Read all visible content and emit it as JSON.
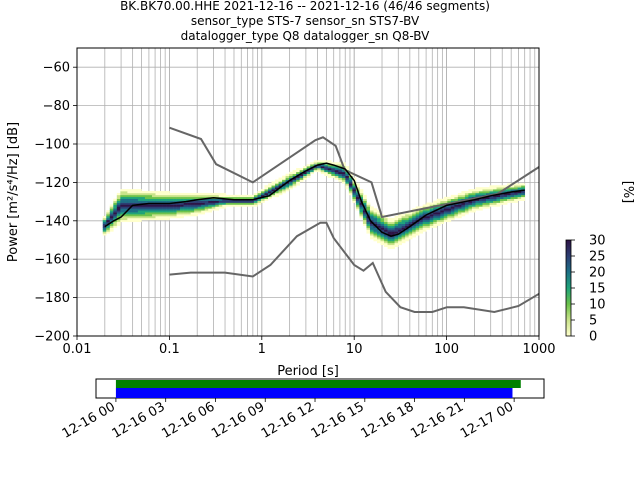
{
  "title": {
    "line1": "BK.BK70.00.HHE   2021-12-16 -- 2021-12-16  (46/46 segments)",
    "line2": "sensor_type STS-7 sensor_sn STS7-BV",
    "line3": "datalogger_type Q8 datalogger_sn Q8-BV"
  },
  "colorbar": {
    "label": "[%]",
    "ticks": [
      "0",
      "5",
      "10",
      "15",
      "20",
      "25",
      "30"
    ],
    "range": [
      0,
      30
    ],
    "colors": [
      "#ffffcc",
      "#c9e38a",
      "#6cc24a",
      "#1fa37a",
      "#1d6f86",
      "#2c3e73",
      "#2e1446"
    ]
  },
  "chart_data": [
    {
      "type": "heatmap",
      "title": "",
      "xlabel": "Period [s]",
      "ylabel": "Power [m²/s⁴/Hz] [dB]",
      "xscale": "log",
      "xlim": [
        0.01,
        1000
      ],
      "ylim": [
        -200,
        -50
      ],
      "grid": true,
      "x_ticks": [
        "0.01",
        "0.1",
        "1",
        "10",
        "100",
        "1000"
      ],
      "y_ticks": [
        "−200",
        "−180",
        "−160",
        "−140",
        "−120",
        "−100",
        "−80",
        "−60"
      ],
      "y_tick_values": [
        -200,
        -180,
        -160,
        -140,
        -120,
        -100,
        -80,
        -60
      ],
      "mean_psd": {
        "color": "#000000",
        "periods": [
          0.02,
          0.025,
          0.03,
          0.04,
          0.06,
          0.1,
          0.15,
          0.2,
          0.3,
          0.5,
          0.8,
          1.2,
          2,
          3,
          4,
          5,
          6,
          8,
          10,
          12,
          15,
          20,
          25,
          30,
          40,
          60,
          100,
          200,
          300,
          500,
          700
        ],
        "db": [
          -143,
          -140,
          -138,
          -132,
          -131,
          -131,
          -130,
          -129,
          -128,
          -129,
          -129,
          -127,
          -119,
          -114,
          -111,
          -110,
          -111,
          -113,
          -119,
          -130,
          -140,
          -146,
          -148,
          -147,
          -143,
          -137,
          -132,
          -129,
          -127,
          -125,
          -124
        ]
      },
      "noise_model_high": {
        "color": "#666666",
        "periods": [
          0.1,
          0.22,
          0.32,
          0.8,
          3.8,
          4.6,
          6.3,
          7.9,
          15.4,
          20,
          354.8,
          1000
        ],
        "db": [
          -91.5,
          -97.4,
          -110.5,
          -120,
          -98,
          -96.5,
          -101,
          -113.5,
          -120,
          -138,
          -126,
          -112
        ]
      },
      "noise_model_low": {
        "color": "#666666",
        "periods": [
          0.1,
          0.17,
          0.4,
          0.8,
          1.24,
          2.4,
          4.3,
          5,
          6,
          10,
          12.6,
          15.9,
          21.9,
          31.6,
          45,
          70,
          101,
          154,
          328,
          600,
          1000
        ],
        "db": [
          -168,
          -167,
          -167,
          -169,
          -163,
          -148,
          -141,
          -141,
          -149,
          -163,
          -166,
          -162,
          -177,
          -185,
          -187.5,
          -187.5,
          -185,
          -185,
          -187.5,
          -184.4,
          -178
        ]
      },
      "density_band": {
        "description_periods": [
          0.02,
          0.03,
          0.05,
          0.1,
          0.2,
          0.4,
          0.8,
          2,
          4,
          8,
          15,
          25,
          60,
          200,
          700
        ],
        "upper_db": [
          -138,
          -124,
          -125,
          -126,
          -126,
          -127,
          -127,
          -116,
          -109,
          -111,
          -133,
          -140,
          -132,
          -124,
          -121
        ],
        "lower_db": [
          -147,
          -140,
          -139,
          -138,
          -136,
          -132,
          -132,
          -123,
          -113,
          -120,
          -148,
          -154,
          -144,
          -134,
          -128
        ]
      }
    },
    {
      "type": "bar",
      "title": "",
      "xlabel": "",
      "ylabel": "",
      "time_ticks": [
        "12-16 00",
        "12-16 03",
        "12-16 06",
        "12-16 09",
        "12-16 12",
        "12-16 15",
        "12-16 18",
        "12-16 21",
        "12-17 00"
      ],
      "xlim_hours": [
        -1.2,
        25.8
      ],
      "series": [
        {
          "color": "#008000",
          "start_hour": 0,
          "end_hour": 24.4
        },
        {
          "color": "#0000ff",
          "start_hour": 0,
          "end_hour": 23.9
        }
      ]
    }
  ]
}
